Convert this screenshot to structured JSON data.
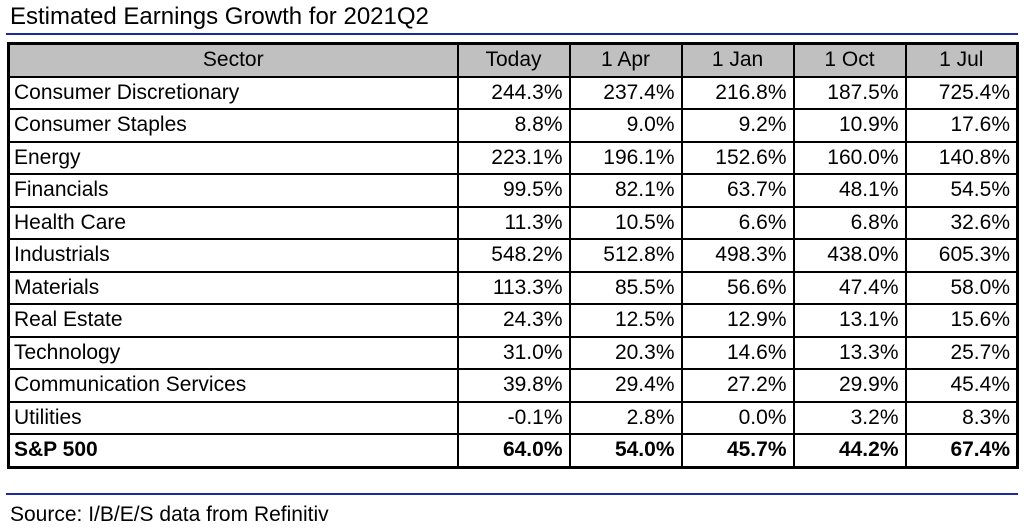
{
  "title": "Estimated Earnings Growth for  2021Q2",
  "table": {
    "headers": [
      "Sector",
      "Today",
      "1 Apr",
      "1 Jan",
      "1 Oct",
      "1 Jul"
    ],
    "rows": [
      [
        "Consumer Discretionary",
        "244.3%",
        "237.4%",
        "216.8%",
        "187.5%",
        "725.4%"
      ],
      [
        "Consumer Staples",
        "8.8%",
        "9.0%",
        "9.2%",
        "10.9%",
        "17.6%"
      ],
      [
        "Energy",
        "223.1%",
        "196.1%",
        "152.6%",
        "160.0%",
        "140.8%"
      ],
      [
        "Financials",
        "99.5%",
        "82.1%",
        "63.7%",
        "48.1%",
        "54.5%"
      ],
      [
        "Health Care",
        "11.3%",
        "10.5%",
        "6.6%",
        "6.8%",
        "32.6%"
      ],
      [
        "Industrials",
        "548.2%",
        "512.8%",
        "498.3%",
        "438.0%",
        "605.3%"
      ],
      [
        "Materials",
        "113.3%",
        "85.5%",
        "56.6%",
        "47.4%",
        "58.0%"
      ],
      [
        "Real Estate",
        "24.3%",
        "12.5%",
        "12.9%",
        "13.1%",
        "15.6%"
      ],
      [
        "Technology",
        "31.0%",
        "20.3%",
        "14.6%",
        "13.3%",
        "25.7%"
      ],
      [
        "Communication Services",
        "39.8%",
        "29.4%",
        "27.2%",
        "29.9%",
        "45.4%"
      ],
      [
        "Utilities",
        "-0.1%",
        "2.8%",
        "0.0%",
        "3.2%",
        "8.3%"
      ]
    ],
    "total": [
      "S&P 500",
      "64.0%",
      "54.0%",
      "45.7%",
      "44.2%",
      "67.4%"
    ]
  },
  "source": "Source: I/B/E/S data from Refinitiv",
  "colors": {
    "rule": "#1a2b9e",
    "header_bg": "#c0c0c0"
  }
}
